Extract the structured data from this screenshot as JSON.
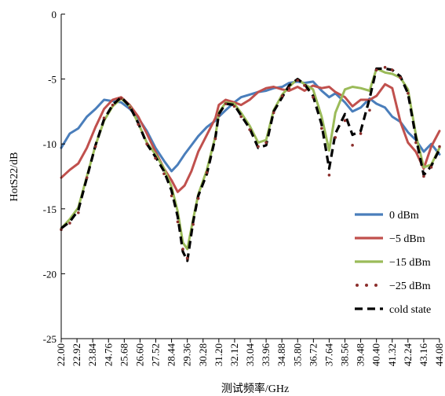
{
  "chart_data": {
    "type": "line",
    "xlabel": "测试频率/GHz",
    "ylabel": "HotS22/dB",
    "ylim": [
      -25,
      0
    ],
    "yticks": [
      0,
      -5,
      -10,
      -15,
      -20,
      -25
    ],
    "xlim": [
      22.0,
      44.08
    ],
    "xtick_labels": [
      "22.00",
      "22.92",
      "23.84",
      "24.76",
      "25.68",
      "26.60",
      "27.52",
      "28.44",
      "29.36",
      "30.28",
      "31.20",
      "32.12",
      "33.04",
      "33.96",
      "34.88",
      "35.80",
      "36.72",
      "37.64",
      "38.56",
      "39.48",
      "40.40",
      "41.32",
      "42.24",
      "43.16",
      "44.08"
    ],
    "grid": false,
    "legend_position": "bottom-right",
    "series": [
      {
        "name": "0 dBm",
        "color": "#4a7ebb",
        "style": "solid",
        "x": [
          22.0,
          22.5,
          23.0,
          23.5,
          24.0,
          24.5,
          25.0,
          25.5,
          26.0,
          26.5,
          27.0,
          27.5,
          28.0,
          28.44,
          28.8,
          29.2,
          29.6,
          30.0,
          30.5,
          31.0,
          31.2,
          31.6,
          32.1,
          32.5,
          33.0,
          33.5,
          33.96,
          34.4,
          34.9,
          35.3,
          35.8,
          36.2,
          36.7,
          37.2,
          37.64,
          38.0,
          38.56,
          39.0,
          39.48,
          40.0,
          40.4,
          40.9,
          41.32,
          41.8,
          42.24,
          42.7,
          43.16,
          43.6,
          44.08
        ],
        "y": [
          -10.3,
          -9.2,
          -8.8,
          -7.9,
          -7.3,
          -6.6,
          -6.7,
          -6.8,
          -7.3,
          -8.0,
          -9.0,
          -10.3,
          -11.3,
          -12.1,
          -11.6,
          -10.8,
          -10.1,
          -9.4,
          -8.7,
          -8.2,
          -7.9,
          -7.4,
          -6.8,
          -6.4,
          -6.2,
          -6.0,
          -5.9,
          -5.7,
          -5.6,
          -5.3,
          -5.2,
          -5.3,
          -5.2,
          -5.9,
          -6.4,
          -6.1,
          -6.8,
          -7.5,
          -7.2,
          -6.5,
          -6.9,
          -7.2,
          -7.9,
          -8.3,
          -9.1,
          -9.7,
          -10.6,
          -10.0,
          -10.8
        ]
      },
      {
        "name": "−5 dBm",
        "color": "#c0504d",
        "style": "solid",
        "x": [
          22.0,
          22.5,
          23.0,
          23.5,
          24.0,
          24.5,
          25.0,
          25.5,
          26.0,
          26.5,
          27.0,
          27.5,
          28.0,
          28.44,
          28.8,
          29.2,
          29.6,
          30.0,
          30.5,
          31.0,
          31.2,
          31.6,
          32.1,
          32.5,
          33.0,
          33.5,
          33.96,
          34.4,
          34.9,
          35.3,
          35.8,
          36.2,
          36.7,
          37.2,
          37.64,
          38.0,
          38.56,
          39.0,
          39.48,
          40.0,
          40.4,
          40.9,
          41.32,
          41.8,
          42.24,
          42.7,
          43.16,
          43.6,
          44.08
        ],
        "y": [
          -12.6,
          -12.0,
          -11.5,
          -10.3,
          -8.7,
          -7.3,
          -6.6,
          -6.4,
          -7.0,
          -7.9,
          -9.2,
          -10.6,
          -11.9,
          -12.8,
          -13.7,
          -13.2,
          -12.1,
          -10.6,
          -9.3,
          -8.0,
          -7.0,
          -6.6,
          -6.8,
          -7.0,
          -6.6,
          -6.0,
          -5.7,
          -5.6,
          -5.8,
          -5.9,
          -5.6,
          -5.9,
          -5.5,
          -5.7,
          -5.6,
          -6.0,
          -6.4,
          -7.1,
          -6.6,
          -6.6,
          -6.3,
          -5.4,
          -5.7,
          -8.3,
          -9.9,
          -10.6,
          -11.9,
          -10.2,
          -9.0
        ]
      },
      {
        "name": "−15 dBm",
        "color": "#9bbb59",
        "style": "solid",
        "x": [
          22.0,
          22.5,
          23.0,
          23.5,
          24.0,
          24.5,
          25.0,
          25.5,
          26.0,
          26.5,
          27.0,
          27.5,
          28.0,
          28.44,
          28.8,
          29.1,
          29.36,
          29.7,
          30.0,
          30.5,
          31.0,
          31.2,
          31.6,
          32.1,
          32.5,
          33.0,
          33.5,
          33.96,
          34.4,
          34.9,
          35.3,
          35.8,
          36.2,
          36.7,
          37.2,
          37.64,
          38.0,
          38.56,
          39.0,
          39.48,
          40.0,
          40.4,
          40.9,
          41.32,
          41.8,
          42.24,
          42.7,
          43.16,
          43.6,
          44.08
        ],
        "y": [
          -16.5,
          -15.8,
          -14.9,
          -12.5,
          -10.1,
          -8.2,
          -7.1,
          -6.5,
          -7.1,
          -8.4,
          -9.9,
          -10.8,
          -11.9,
          -13.3,
          -15.2,
          -17.6,
          -18.1,
          -15.8,
          -13.9,
          -12.0,
          -9.4,
          -7.6,
          -6.8,
          -6.9,
          -7.6,
          -8.6,
          -9.9,
          -9.7,
          -7.4,
          -6.2,
          -5.6,
          -5.0,
          -5.4,
          -5.8,
          -7.9,
          -10.5,
          -7.6,
          -5.8,
          -5.6,
          -5.7,
          -5.9,
          -4.2,
          -4.5,
          -4.6,
          -4.9,
          -5.8,
          -9.3,
          -11.8,
          -11.6,
          -10.3
        ]
      },
      {
        "name": "−25 dBm",
        "color": "#8b2e2b",
        "style": "dotted",
        "x": [
          22.0,
          22.5,
          23.0,
          23.5,
          24.0,
          24.5,
          25.0,
          25.5,
          26.0,
          26.5,
          27.0,
          27.5,
          28.0,
          28.44,
          28.8,
          29.1,
          29.36,
          29.7,
          30.0,
          30.5,
          31.0,
          31.2,
          31.6,
          32.1,
          32.5,
          33.0,
          33.5,
          33.96,
          34.4,
          34.9,
          35.3,
          35.8,
          36.2,
          36.7,
          37.2,
          37.64,
          38.0,
          38.56,
          39.0,
          39.48,
          40.0,
          40.4,
          40.9,
          41.32,
          41.8,
          42.24,
          42.7,
          43.16,
          43.6,
          44.08
        ],
        "y": [
          -16.6,
          -16.1,
          -15.3,
          -12.6,
          -10.2,
          -8.0,
          -7.0,
          -6.5,
          -7.2,
          -8.5,
          -10.0,
          -11.1,
          -12.3,
          -14.0,
          -16.0,
          -18.1,
          -18.8,
          -16.2,
          -14.2,
          -12.2,
          -9.6,
          -7.8,
          -6.9,
          -7.1,
          -7.9,
          -8.9,
          -10.2,
          -9.9,
          -7.6,
          -6.3,
          -5.7,
          -5.1,
          -5.5,
          -6.4,
          -8.8,
          -12.4,
          -9.5,
          -8.2,
          -10.1,
          -9.2,
          -7.4,
          -4.3,
          -4.1,
          -4.3,
          -4.9,
          -6.1,
          -9.9,
          -12.5,
          -11.8,
          -10.2
        ]
      },
      {
        "name": "cold state",
        "color": "#000000",
        "style": "dashed",
        "x": [
          22.0,
          22.5,
          23.0,
          23.5,
          24.0,
          24.5,
          25.0,
          25.5,
          26.0,
          26.5,
          27.0,
          27.5,
          28.0,
          28.44,
          28.8,
          29.1,
          29.36,
          29.7,
          30.0,
          30.5,
          31.0,
          31.2,
          31.6,
          32.1,
          32.5,
          33.0,
          33.5,
          33.96,
          34.4,
          34.9,
          35.3,
          35.8,
          36.2,
          36.7,
          37.2,
          37.64,
          38.0,
          38.56,
          39.0,
          39.48,
          40.0,
          40.4,
          40.9,
          41.32,
          41.8,
          42.24,
          42.7,
          43.16,
          43.6,
          44.08
        ],
        "y": [
          -16.5,
          -16.0,
          -15.1,
          -12.6,
          -10.1,
          -8.1,
          -7.0,
          -6.4,
          -7.1,
          -8.4,
          -10.0,
          -11.0,
          -12.1,
          -13.6,
          -15.6,
          -18.3,
          -19.0,
          -16.0,
          -14.0,
          -12.3,
          -9.5,
          -7.7,
          -6.9,
          -7.0,
          -7.8,
          -8.8,
          -10.3,
          -10.1,
          -7.5,
          -6.4,
          -5.5,
          -5.0,
          -5.4,
          -6.3,
          -8.5,
          -11.9,
          -9.2,
          -7.7,
          -9.3,
          -9.0,
          -6.5,
          -4.2,
          -4.2,
          -4.3,
          -4.8,
          -6.1,
          -9.5,
          -12.4,
          -11.7,
          -10.4
        ]
      }
    ]
  }
}
